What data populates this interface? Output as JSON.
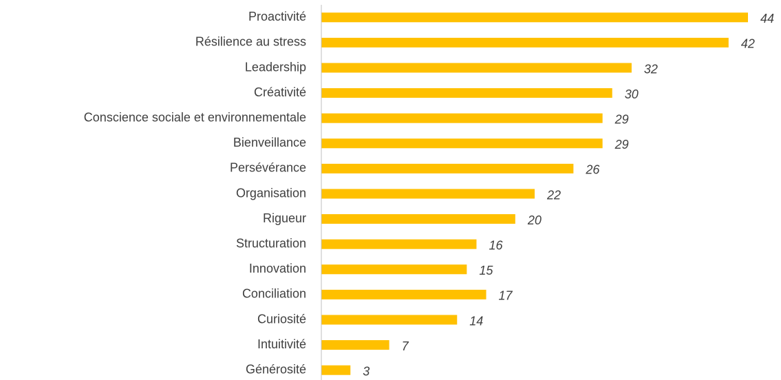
{
  "chart_data": {
    "type": "barh",
    "categories": [
      "Proactivité",
      "Résilience au stress",
      "Leadership",
      "Créativité",
      "Conscience sociale et environnementale",
      "Bienveillance",
      "Persévérance",
      "Organisation",
      "Rigueur",
      "Structuration",
      "Innovation",
      "Conciliation",
      "Curiosité",
      "Intuitivité",
      "Générosité"
    ],
    "values": [
      44,
      42,
      32,
      30,
      29,
      29,
      26,
      22,
      20,
      16,
      15,
      17,
      14,
      7,
      3
    ],
    "color": "#ffc000"
  }
}
